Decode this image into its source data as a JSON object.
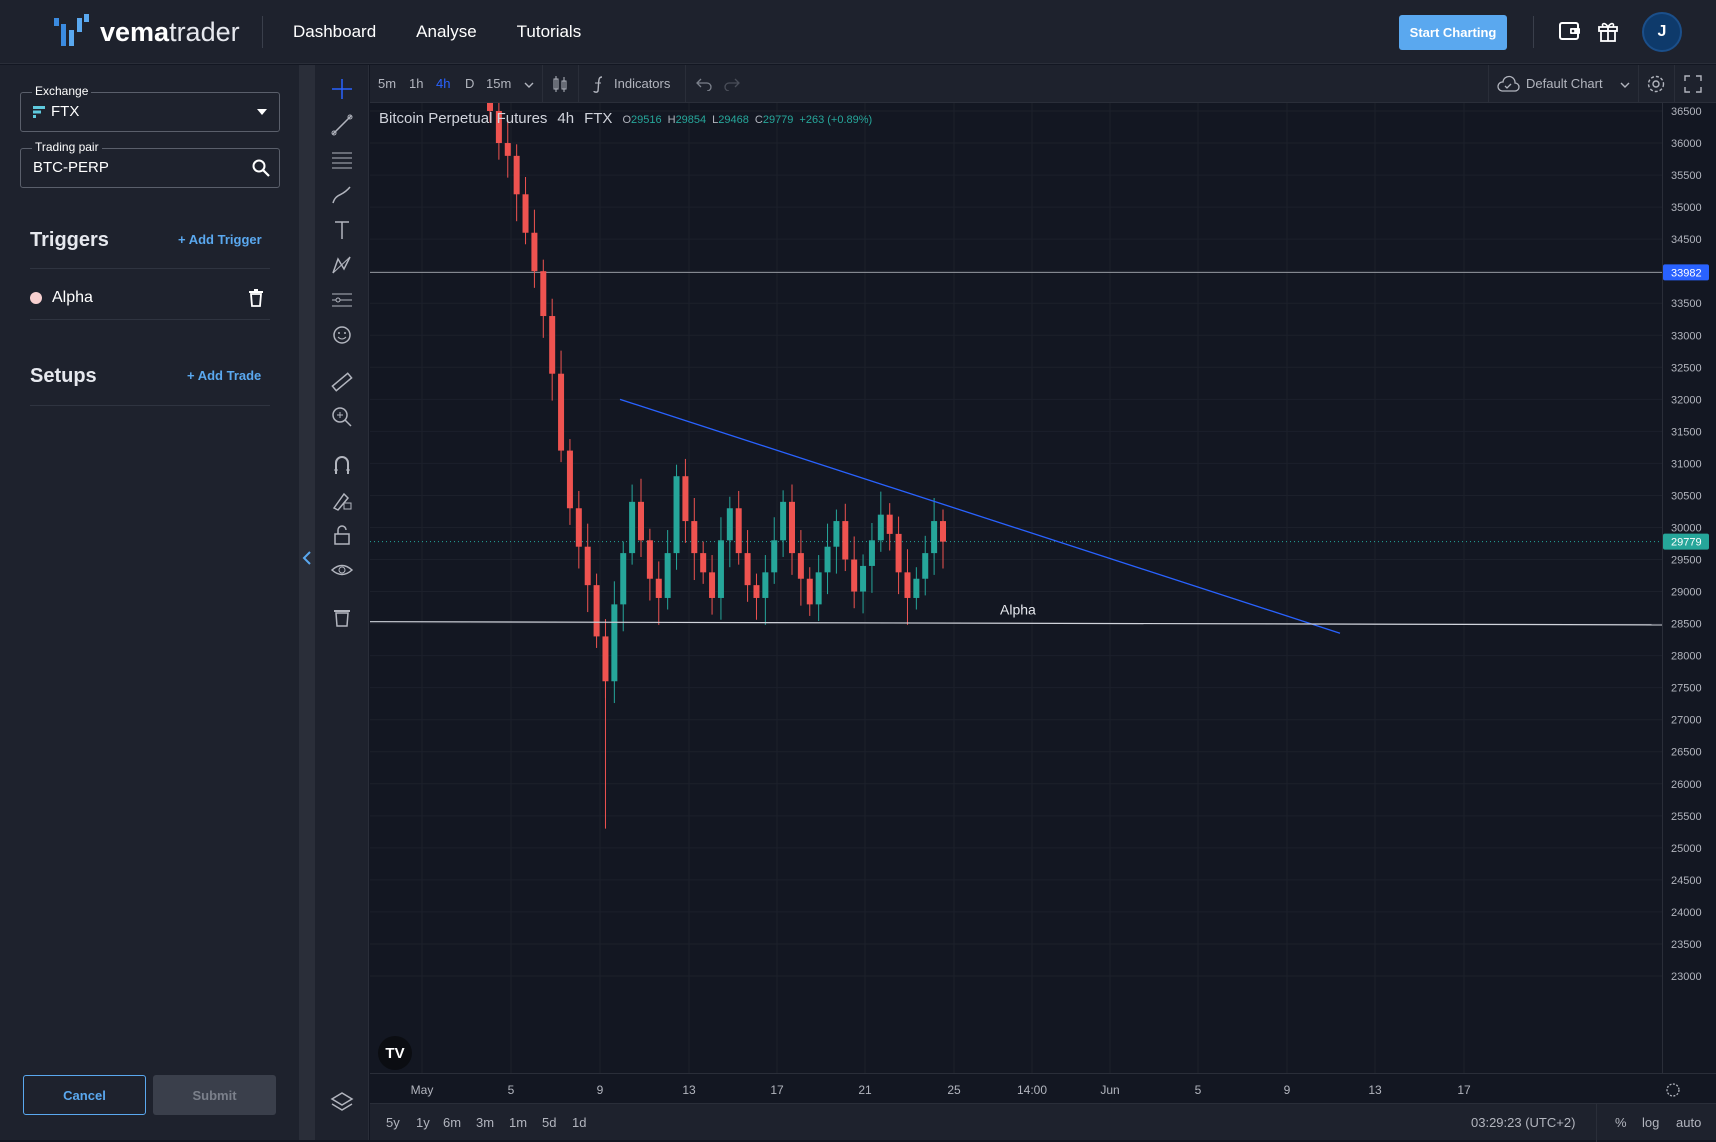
{
  "brand": {
    "name_bold": "vema",
    "name_light": "trader"
  },
  "nav": {
    "items": [
      "Dashboard",
      "Analyse",
      "Tutorials"
    ]
  },
  "header": {
    "start_charting": "Start Charting",
    "avatar_initial": "J"
  },
  "sidebar": {
    "exchange": {
      "label": "Exchange",
      "value": "FTX"
    },
    "pair": {
      "label": "Trading pair",
      "value": "BTC-PERP"
    },
    "triggers": {
      "title": "Triggers",
      "add": "+ Add Trigger",
      "items": [
        {
          "label": "Alpha",
          "color": "#f7d0d0"
        }
      ]
    },
    "setups": {
      "title": "Setups",
      "add": "+ Add Trade"
    },
    "cancel": "Cancel",
    "submit": "Submit"
  },
  "chart_toolbar": {
    "timeframes": [
      "5m",
      "1h",
      "4h",
      "D",
      "15m"
    ],
    "active_timeframe": "4h",
    "indicators": "Indicators",
    "layout_name": "Default Chart"
  },
  "legend": {
    "symbol": "Bitcoin Perpetual Futures",
    "interval": "4h",
    "exchange": "FTX",
    "open": "29516",
    "high": "29854",
    "low": "29468",
    "close": "29779",
    "change": "+263 (+0.89%)"
  },
  "bottom": {
    "ranges": [
      "5y",
      "1y",
      "6m",
      "3m",
      "1m",
      "5d",
      "1d"
    ],
    "clock": "03:29:23 (UTC+2)",
    "percent": "%",
    "log": "log",
    "auto": "auto"
  },
  "chart_data": {
    "type": "candlestick",
    "title": "Bitcoin Perpetual Futures",
    "y_ticks": [
      36500,
      36000,
      35500,
      35000,
      34500,
      34000,
      33500,
      33000,
      32500,
      32000,
      31500,
      31000,
      30500,
      30000,
      29500,
      29000,
      28500,
      28000,
      27500,
      27000,
      26500,
      26000,
      25500,
      25000,
      24500,
      24000,
      23500,
      23000
    ],
    "ylim": [
      23000,
      36700
    ],
    "x_ticks": [
      "May",
      "5",
      "9",
      "13",
      "17",
      "21",
      "25",
      "14:00",
      "Jun",
      "5",
      "9",
      "13",
      "17"
    ],
    "price_tags": [
      {
        "value": 33982,
        "color": "#2962ff"
      },
      {
        "value": 29779,
        "color": "#26a69a"
      }
    ],
    "horizontal_lines": [
      {
        "value": 33982,
        "color": "#9598a1"
      }
    ],
    "trigger_line": {
      "label": "Alpha",
      "value": 28500
    },
    "trend_line": {
      "from": {
        "x": "May 9",
        "y": 32000
      },
      "to": {
        "x": "Jun 10",
        "y": 28350
      }
    },
    "candles_close_sample": [
      36500,
      36000,
      35800,
      35200,
      34600,
      34000,
      33300,
      32400,
      31200,
      30300,
      29700,
      29100,
      28300,
      27600,
      28800,
      29600,
      30400,
      29800,
      29200,
      28900,
      29600,
      30800,
      30100,
      29600,
      29300,
      28900,
      29800,
      30300,
      29600,
      29100,
      28900,
      29300,
      29800,
      30400,
      29600,
      29200,
      28800,
      29300,
      29700,
      30100,
      29500,
      29000,
      29400,
      29800,
      30200,
      29900,
      29300,
      28900,
      29200,
      29600,
      30100,
      29779
    ]
  }
}
